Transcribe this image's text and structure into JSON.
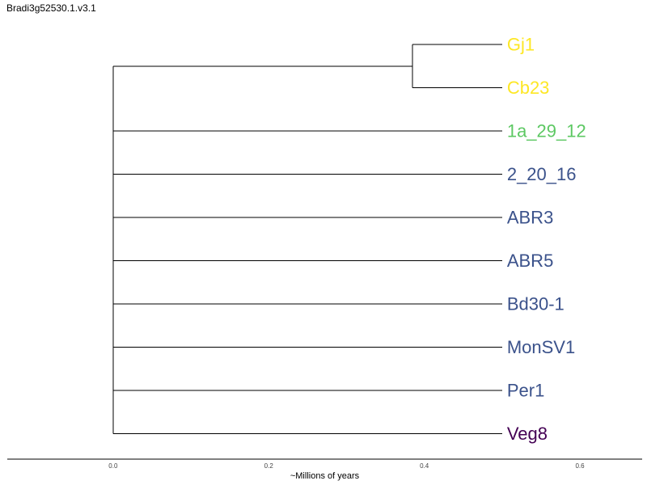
{
  "title": "Bradi3g52530.1.v3.1",
  "chart_data": {
    "type": "dendrogram",
    "title": "Bradi3g52530.1.v3.1",
    "xlabel": "~Millions of years",
    "xlim": [
      -0.136,
      0.68
    ],
    "x_ticks": [
      0.0,
      0.2,
      0.4,
      0.6
    ],
    "x_tick_labels": [
      "0.0",
      "0.2",
      "0.4",
      "0.6"
    ],
    "tip_depth": 0.5,
    "leaves": [
      {
        "name": "Gj1",
        "color": "#FDE725"
      },
      {
        "name": "Cb23",
        "color": "#FDE725"
      },
      {
        "name": "1a_29_12",
        "color": "#5DC863"
      },
      {
        "name": "2_20_16",
        "color": "#3B528B"
      },
      {
        "name": "ABR3",
        "color": "#3B528B"
      },
      {
        "name": "ABR5",
        "color": "#3B528B"
      },
      {
        "name": "Bd30-1",
        "color": "#3B528B"
      },
      {
        "name": "MonSV1",
        "color": "#3B528B"
      },
      {
        "name": "Per1",
        "color": "#3B528B"
      },
      {
        "name": "Veg8",
        "color": "#440154"
      }
    ],
    "clades": [
      {
        "members": [
          "Gj1",
          "Cb23"
        ],
        "height": 0.385
      }
    ],
    "root_height": 0.0
  }
}
